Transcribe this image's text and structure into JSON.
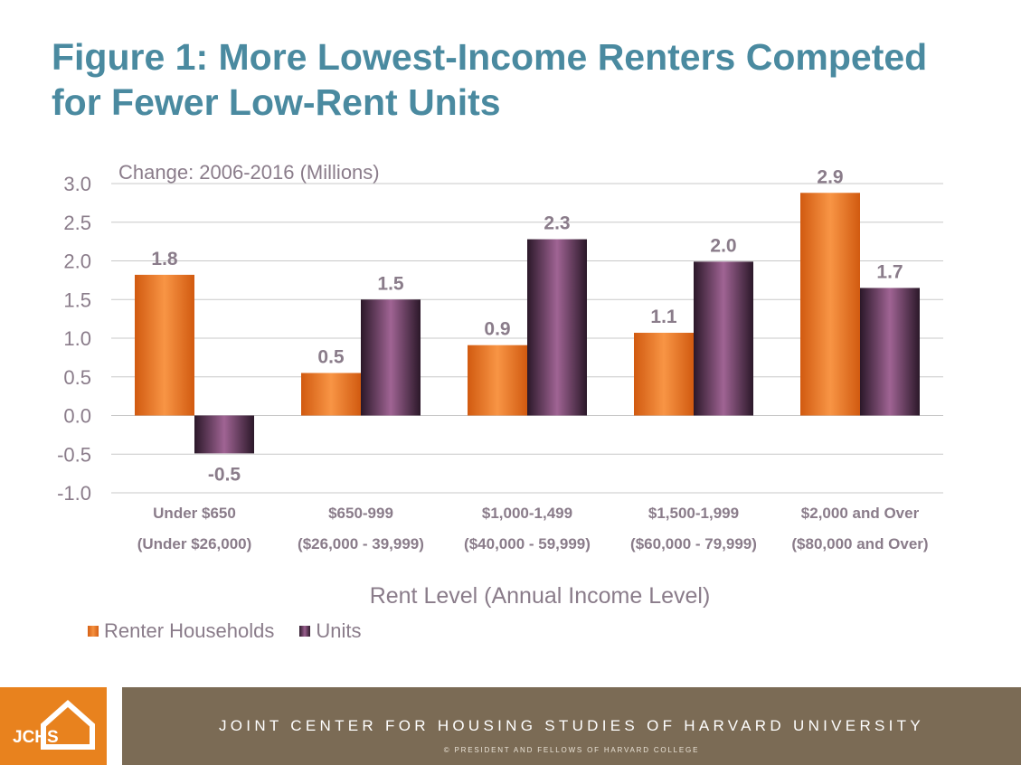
{
  "title": {
    "line1": "Figure 1: More Lowest-Income Renters Competed",
    "line2": "for Fewer Low-Rent Units"
  },
  "chart_data": {
    "type": "bar",
    "subtitle": "Change: 2006-2016 (Millions)",
    "xlabel": "Rent Level (Annual Income Level)",
    "ylabel": "",
    "ylim": [
      -1.0,
      3.0
    ],
    "yticks": [
      "3.0",
      "2.5",
      "2.0",
      "1.5",
      "1.0",
      "0.5",
      "0.0",
      "-0.5",
      "-1.0"
    ],
    "ytick_values": [
      3.0,
      2.5,
      2.0,
      1.5,
      1.0,
      0.5,
      0.0,
      -0.5,
      -1.0
    ],
    "grid": true,
    "legend_position": "bottom-left",
    "categories": [
      {
        "line1": "Under $650",
        "line2": "(Under $26,000)"
      },
      {
        "line1": "$650-999",
        "line2": "($26,000 - 39,999)"
      },
      {
        "line1": "$1,000-1,499",
        "line2": "($40,000 - 59,999)"
      },
      {
        "line1": "$1,500-1,999",
        "line2": "($60,000 - 79,999)"
      },
      {
        "line1": "$2,000 and Over",
        "line2": "($80,000 and Over)"
      }
    ],
    "series": [
      {
        "name": "Renter Households",
        "color": "#e8731f",
        "values": [
          1.82,
          0.55,
          0.91,
          1.07,
          2.88
        ],
        "labels": [
          "1.8",
          "0.5",
          "0.9",
          "1.1",
          "2.9"
        ]
      },
      {
        "name": "Units",
        "color": "#6b3d62",
        "values": [
          -0.49,
          1.5,
          2.28,
          1.99,
          1.65
        ],
        "labels": [
          "-0.5",
          "1.5",
          "2.3",
          "2.0",
          "1.7"
        ]
      }
    ]
  },
  "legend": {
    "renter": "Renter Households",
    "units": "Units"
  },
  "footer": {
    "logo": "JCHS",
    "main": "JOINT CENTER FOR HOUSING STUDIES OF HARVARD UNIVERSITY",
    "copyright": "© PRESIDENT AND FELLOWS OF HARVARD COLLEGE"
  },
  "colors": {
    "title": "#4a8aa0",
    "axis_text": "#8a7c8a",
    "footer_orange": "#e8821e",
    "footer_brown": "#7b6b55"
  }
}
